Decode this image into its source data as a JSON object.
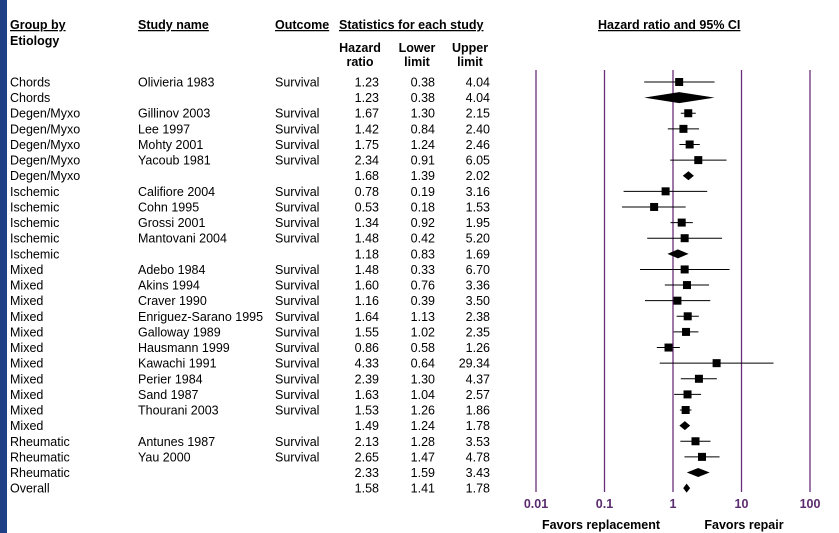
{
  "colors": {
    "frame": "#1f3f86",
    "axis": "#6b2f7a",
    "marker": "#000000",
    "text": "#000000"
  },
  "headers": {
    "group": "Group by",
    "group2": "Etiology",
    "study": "Study name",
    "outcome": "Outcome",
    "stats": "Statistics for each study",
    "plot": "Hazard ratio and 95% CI",
    "hr1": "Hazard",
    "hr2": "ratio",
    "lo1": "Lower",
    "lo2": "limit",
    "up1": "Upper",
    "up2": "limit"
  },
  "footer": {
    "left": "Favors replacement",
    "right": "Favors repair"
  },
  "chart_data": {
    "type": "forest",
    "x_scale": "log",
    "xlim": [
      0.01,
      100
    ],
    "x_ticks": [
      "0.01",
      "0.1",
      "1",
      "10",
      "100"
    ],
    "rows": [
      {
        "group": "Chords",
        "study": "Olivieria 1983",
        "outcome": "Survival",
        "hr": "1.23",
        "lower": "0.38",
        "upper": "4.04",
        "summary": false
      },
      {
        "group": "Chords",
        "study": "",
        "outcome": "",
        "hr": "1.23",
        "lower": "0.38",
        "upper": "4.04",
        "summary": true
      },
      {
        "group": "Degen/Myxo",
        "study": "Gillinov 2003",
        "outcome": "Survival",
        "hr": "1.67",
        "lower": "1.30",
        "upper": "2.15",
        "summary": false
      },
      {
        "group": "Degen/Myxo",
        "study": "Lee 1997",
        "outcome": "Survival",
        "hr": "1.42",
        "lower": "0.84",
        "upper": "2.40",
        "summary": false
      },
      {
        "group": "Degen/Myxo",
        "study": "Mohty 2001",
        "outcome": "Survival",
        "hr": "1.75",
        "lower": "1.24",
        "upper": "2.46",
        "summary": false
      },
      {
        "group": "Degen/Myxo",
        "study": "Yacoub 1981",
        "outcome": "Survival",
        "hr": "2.34",
        "lower": "0.91",
        "upper": "6.05",
        "summary": false
      },
      {
        "group": "Degen/Myxo",
        "study": "",
        "outcome": "",
        "hr": "1.68",
        "lower": "1.39",
        "upper": "2.02",
        "summary": true
      },
      {
        "group": "Ischemic",
        "study": "Califiore 2004",
        "outcome": "Survival",
        "hr": "0.78",
        "lower": "0.19",
        "upper": "3.16",
        "summary": false
      },
      {
        "group": "Ischemic",
        "study": "Cohn 1995",
        "outcome": "Survival",
        "hr": "0.53",
        "lower": "0.18",
        "upper": "1.53",
        "summary": false
      },
      {
        "group": "Ischemic",
        "study": "Grossi 2001",
        "outcome": "Survival",
        "hr": "1.34",
        "lower": "0.92",
        "upper": "1.95",
        "summary": false
      },
      {
        "group": "Ischemic",
        "study": "Mantovani 2004",
        "outcome": "Survival",
        "hr": "1.48",
        "lower": "0.42",
        "upper": "5.20",
        "summary": false
      },
      {
        "group": "Ischemic",
        "study": "",
        "outcome": "",
        "hr": "1.18",
        "lower": "0.83",
        "upper": "1.69",
        "summary": true
      },
      {
        "group": "Mixed",
        "study": "Adebo 1984",
        "outcome": "Survival",
        "hr": "1.48",
        "lower": "0.33",
        "upper": "6.70",
        "summary": false
      },
      {
        "group": "Mixed",
        "study": "Akins 1994",
        "outcome": "Survival",
        "hr": "1.60",
        "lower": "0.76",
        "upper": "3.36",
        "summary": false
      },
      {
        "group": "Mixed",
        "study": "Craver 1990",
        "outcome": "Survival",
        "hr": "1.16",
        "lower": "0.39",
        "upper": "3.50",
        "summary": false
      },
      {
        "group": "Mixed",
        "study": "Enriguez-Sarano 1995",
        "outcome": "Survival",
        "hr": "1.64",
        "lower": "1.13",
        "upper": "2.38",
        "summary": false
      },
      {
        "group": "Mixed",
        "study": "Galloway 1989",
        "outcome": "Survival",
        "hr": "1.55",
        "lower": "1.02",
        "upper": "2.35",
        "summary": false
      },
      {
        "group": "Mixed",
        "study": "Hausmann 1999",
        "outcome": "Survival",
        "hr": "0.86",
        "lower": "0.58",
        "upper": "1.26",
        "summary": false
      },
      {
        "group": "Mixed",
        "study": "Kawachi 1991",
        "outcome": "Survival",
        "hr": "4.33",
        "lower": "0.64",
        "upper": "29.34",
        "summary": false
      },
      {
        "group": "Mixed",
        "study": "Perier 1984",
        "outcome": "Survival",
        "hr": "2.39",
        "lower": "1.30",
        "upper": "4.37",
        "summary": false
      },
      {
        "group": "Mixed",
        "study": "Sand 1987",
        "outcome": "Survival",
        "hr": "1.63",
        "lower": "1.04",
        "upper": "2.57",
        "summary": false
      },
      {
        "group": "Mixed",
        "study": "Thourani 2003",
        "outcome": "Survival",
        "hr": "1.53",
        "lower": "1.26",
        "upper": "1.86",
        "summary": false
      },
      {
        "group": "Mixed",
        "study": "",
        "outcome": "",
        "hr": "1.49",
        "lower": "1.24",
        "upper": "1.78",
        "summary": true
      },
      {
        "group": "Rheumatic",
        "study": "Antunes 1987",
        "outcome": "Survival",
        "hr": "2.13",
        "lower": "1.28",
        "upper": "3.53",
        "summary": false
      },
      {
        "group": "Rheumatic",
        "study": "Yau 2000",
        "outcome": "Survival",
        "hr": "2.65",
        "lower": "1.47",
        "upper": "4.78",
        "summary": false
      },
      {
        "group": "Rheumatic",
        "study": "",
        "outcome": "",
        "hr": "2.33",
        "lower": "1.59",
        "upper": "3.43",
        "summary": true
      },
      {
        "group": "Overall",
        "study": "",
        "outcome": "",
        "hr": "1.58",
        "lower": "1.41",
        "upper": "1.78",
        "summary": true
      }
    ]
  }
}
